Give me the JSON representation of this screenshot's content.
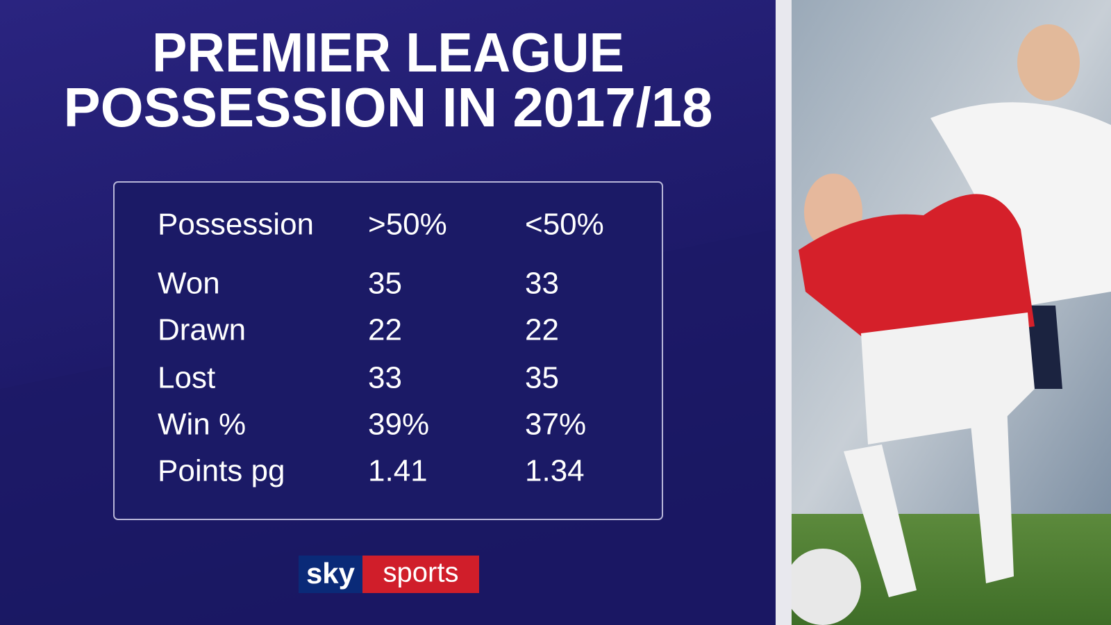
{
  "header": {
    "title_lines": [
      "PREMIER LEAGUE",
      "POSSESSION IN 2017/18"
    ]
  },
  "table": {
    "columns": [
      "Possession",
      ">50%",
      "<50%"
    ],
    "rows": [
      [
        "Won",
        "35",
        "33"
      ],
      [
        "Drawn",
        "22",
        "22"
      ],
      [
        "Lost",
        "33",
        "35"
      ],
      [
        "Win %",
        "39%",
        "37%"
      ],
      [
        "Points pg",
        "1.41",
        "1.34"
      ]
    ]
  },
  "logo": {
    "sky": "sky",
    "sports": "sports"
  }
}
